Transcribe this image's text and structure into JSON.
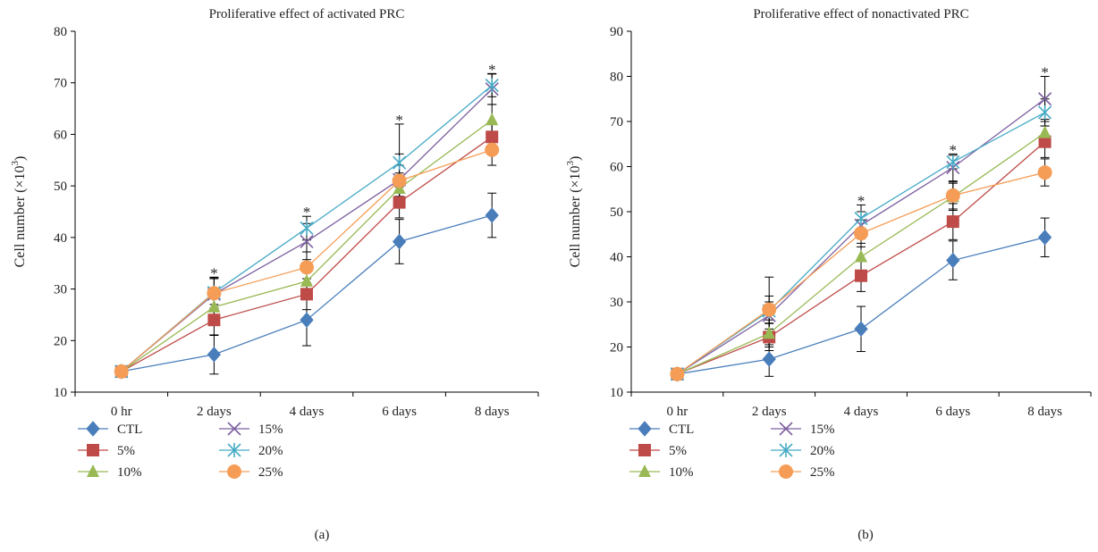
{
  "chart_data": [
    {
      "type": "line",
      "title": "Proliferative effect of activated PRC",
      "panel_label": "(a)",
      "ylabel_main": "Cell number (×10",
      "ylabel_exp": "3",
      "ylabel_close": ")",
      "categories": [
        "0 hr",
        "2 days",
        "4 days",
        "6 days",
        "8 days"
      ],
      "ylim": [
        10,
        80
      ],
      "yticks": [
        10,
        20,
        30,
        40,
        50,
        60,
        70,
        80
      ],
      "significance": [
        "",
        "*",
        "*",
        "*",
        "*"
      ],
      "series": [
        {
          "name": "CTL",
          "values": [
            14,
            17.3,
            24,
            39.2,
            44.3
          ],
          "err": [
            0,
            3.8,
            5,
            4.3,
            4.3
          ]
        },
        {
          "name": "5%",
          "values": [
            14,
            24,
            29,
            46.8,
            59.5
          ],
          "err": [
            0,
            3,
            3,
            3,
            3
          ]
        },
        {
          "name": "10%",
          "values": [
            14,
            26.5,
            31.5,
            49.5,
            62.8
          ],
          "err": [
            0,
            3,
            3,
            3,
            3
          ]
        },
        {
          "name": "15%",
          "values": [
            14,
            29,
            39.2,
            51.2,
            68.8
          ],
          "err": [
            0,
            3,
            3.5,
            5,
            3
          ]
        },
        {
          "name": "20%",
          "values": [
            14,
            29.3,
            41.8,
            54.5,
            69.5
          ],
          "err": [
            0,
            3,
            2.3,
            7.5,
            2.2
          ]
        },
        {
          "name": "25%",
          "values": [
            14,
            29.2,
            34.2,
            51,
            57
          ],
          "err": [
            0,
            3,
            3,
            3,
            3
          ]
        }
      ]
    },
    {
      "type": "line",
      "title": "Proliferative effect of nonactivated PRC",
      "panel_label": "(b)",
      "ylabel_main": "Cell number (×10",
      "ylabel_exp": "3",
      "ylabel_close": ")",
      "categories": [
        "0 hr",
        "2 days",
        "4 days",
        "6 days",
        "8 days"
      ],
      "ylim": [
        10,
        90
      ],
      "yticks": [
        10,
        20,
        30,
        40,
        50,
        60,
        70,
        80,
        90
      ],
      "significance": [
        "",
        "",
        "*",
        "*",
        "*"
      ],
      "series": [
        {
          "name": "CTL",
          "values": [
            14,
            17.3,
            24,
            39.2,
            44.3
          ],
          "err": [
            0,
            3.8,
            5,
            4.3,
            4.3
          ]
        },
        {
          "name": "5%",
          "values": [
            14,
            22.2,
            35.8,
            47.8,
            65.5
          ],
          "err": [
            0,
            3,
            3.5,
            4,
            3.5
          ]
        },
        {
          "name": "10%",
          "values": [
            14,
            23,
            40,
            53.3,
            67.5
          ],
          "err": [
            0,
            3,
            3,
            3,
            3
          ]
        },
        {
          "name": "15%",
          "values": [
            14,
            27,
            47,
            59.8,
            75
          ],
          "err": [
            0,
            3,
            3,
            3,
            5
          ]
        },
        {
          "name": "20%",
          "values": [
            14,
            28,
            48.5,
            61,
            72
          ],
          "err": [
            0,
            7.5,
            3,
            1.5,
            3
          ]
        },
        {
          "name": "25%",
          "values": [
            14,
            28.3,
            45.2,
            53.6,
            58.7
          ],
          "err": [
            0,
            3,
            3,
            3,
            3
          ]
        }
      ]
    }
  ],
  "colors": {
    "CTL": "#4a7ebb",
    "5%": "#be4b48",
    "10%": "#98b954",
    "15%": "#7d60a0",
    "20%": "#46aac5",
    "25%": "#f59d56"
  },
  "markers": {
    "CTL": "diamond",
    "5%": "square",
    "10%": "triangle",
    "15%": "x",
    "20%": "asterisk",
    "25%": "circle"
  }
}
